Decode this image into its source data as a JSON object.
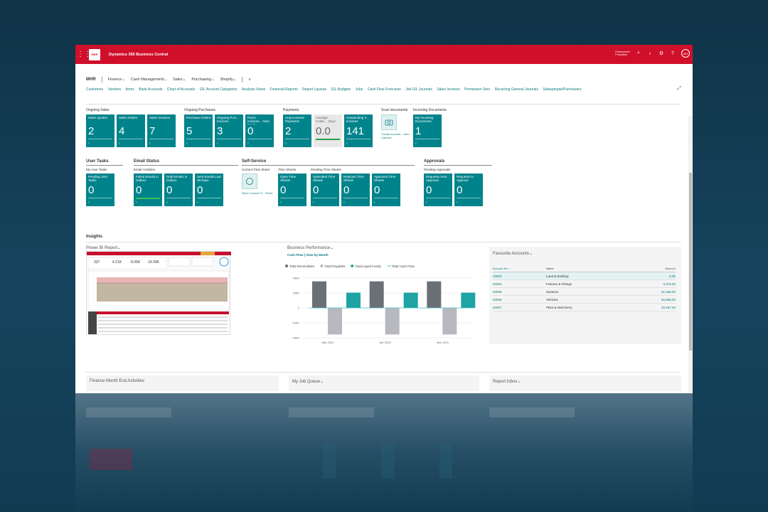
{
  "app": {
    "logo_text": "MHR",
    "title": "Dynamics 365 Business Central",
    "environment": [
      "Environment:",
      "Production"
    ],
    "user_initials": "MH",
    "icons": [
      "waffle-icon",
      "search-icon",
      "bell-icon",
      "gear-icon",
      "help-icon"
    ]
  },
  "nav": {
    "company": "MHR",
    "menus": [
      "Finance",
      "Cash Management",
      "Sales",
      "Purchasing",
      "Shopify"
    ],
    "menu_icon": "hamburger-icon",
    "links": [
      "Customers",
      "Vendors",
      "Items",
      "Bank Accounts",
      "Chart of Accounts",
      "G/L Account Categories",
      "Analysis Views",
      "Financial Reports",
      "Report Layouts",
      "G/L Budgets",
      "Jobs",
      "Cash Flow Forecasts",
      "Job G/L Journals",
      "Sales Invoices",
      "Permission Sets",
      "Recurring General Journals",
      "Salespeople/Purchasers"
    ]
  },
  "groups_row1": [
    {
      "title": "Ongoing Sales",
      "tiles": [
        {
          "label": "Sales Quotes",
          "value": "2"
        },
        {
          "label": "Sales Orders",
          "value": "4"
        },
        {
          "label": "Sales Invoices",
          "value": "7"
        }
      ]
    },
    {
      "title": "Ongoing Purchases",
      "tiles": [
        {
          "label": "Purchase Orders",
          "value": "5"
        },
        {
          "label": "Ongoing Purc... Invoices",
          "value": "3"
        },
        {
          "label": "Purch. Invoices... Next Week",
          "value": "0"
        }
      ]
    },
    {
      "title": "Payments",
      "tiles": [
        {
          "label": "Unprocessed Payments",
          "value": "2"
        },
        {
          "label": "Average Collec... Days",
          "value": "0.0"
        },
        {
          "label": "Outstanding V... Invoices",
          "value": "141"
        }
      ]
    },
    {
      "title": "Scan documents",
      "action_link": "Create Incomin... from Camera"
    },
    {
      "title": "Incoming Documents",
      "tiles": [
        {
          "label": "My Incoming Documents",
          "value": "1"
        }
      ]
    }
  ],
  "groups_row2": [
    {
      "title": "User Tasks",
      "subtitle": "My User Tasks",
      "tiles": [
        {
          "label": "Pending User Tasks",
          "value": "0"
        }
      ]
    },
    {
      "title": "Email Status",
      "subtitle": "Email Activities",
      "tiles": [
        {
          "label": "Failed Emails in Outbox",
          "value": "0"
        },
        {
          "label": "Draft Emails in Outbox",
          "value": "0"
        },
        {
          "label": "Sent Emails Last 30 Days",
          "value": "0"
        }
      ]
    },
    {
      "title": "Self-Service",
      "subtitle_a": "Current Time Sheet",
      "action_link": "Open Current Ti... Sheet",
      "subtitle_b": "Time Sheets",
      "subtitle_c": "Pending Time Sheets",
      "tiles_b": [
        {
          "label": "Open Time Sheets",
          "value": "0"
        }
      ],
      "tiles_c": [
        {
          "label": "Submitted Time Sheets",
          "value": "0"
        },
        {
          "label": "Rejected Time Sheets",
          "value": "0"
        },
        {
          "label": "Approved Time Sheets",
          "value": "0"
        }
      ]
    },
    {
      "title": "Approvals",
      "subtitle": "Pending Approvals",
      "tiles": [
        {
          "label": "Requests Sent... Approval",
          "value": "0"
        },
        {
          "label": "Requests to Approve",
          "value": "0"
        }
      ]
    }
  ],
  "insights": {
    "title": "Insights",
    "power_bi": {
      "title": "Power BI Report",
      "kpis": [
        "337",
        "4.21K",
        "8.05K",
        "14.93K"
      ]
    },
    "business_performance": {
      "title": "Business Performance",
      "subtitle": "Cash Flow | View by Month"
    },
    "favourite_accounts": {
      "title": "Favourite Accounts",
      "columns": [
        "Account No. ↑",
        "Name",
        "Balance"
      ],
      "rows": [
        {
          "no": "40003",
          "name": "Land & Building",
          "balance": "0.00"
        },
        {
          "no": "40004",
          "name": "Fixtures & Fittings",
          "balance": "3,375.00"
        },
        {
          "no": "40005",
          "name": "Systems",
          "balance": "51,558.00"
        },
        {
          "no": "40006",
          "name": "Vehicles",
          "balance": "65,688.00"
        },
        {
          "no": "40007",
          "name": "Plant & Machinery",
          "balance": "20,467.00"
        }
      ]
    }
  },
  "chart_data": {
    "type": "bar",
    "title": "Business Performance",
    "subtitle": "Cash Flow | View by Month",
    "legend": [
      "Total Receivables",
      "Total Payables",
      "Total Liquid Funds",
      "Total Cash Flow"
    ],
    "legend_placement": "top-left",
    "categories": [
      "Mar 2023",
      "Apr 2023",
      "Mar 2023"
    ],
    "series": [
      {
        "name": "Total Receivables",
        "color": "#6b7077",
        "values": [
          400000,
          400000,
          400000
        ]
      },
      {
        "name": "Total Payables",
        "color": "#b7b9be",
        "values": [
          -400000,
          -400000,
          -400000
        ]
      },
      {
        "name": "Total Liquid Funds",
        "color": "#1fa3a3",
        "values": [
          230000,
          230000,
          230000
        ]
      },
      {
        "name": "Total Cash Flow",
        "color": "#40c0c0",
        "values": [
          0,
          0,
          0
        ]
      }
    ],
    "yticks": [
      "450K",
      "225K",
      "0",
      "-225K",
      "-450K"
    ],
    "ylim": [
      -450000,
      450000
    ]
  },
  "bottom_parts": [
    "Finance Month End Activities",
    "My Job Queue",
    "Report Inbox"
  ]
}
